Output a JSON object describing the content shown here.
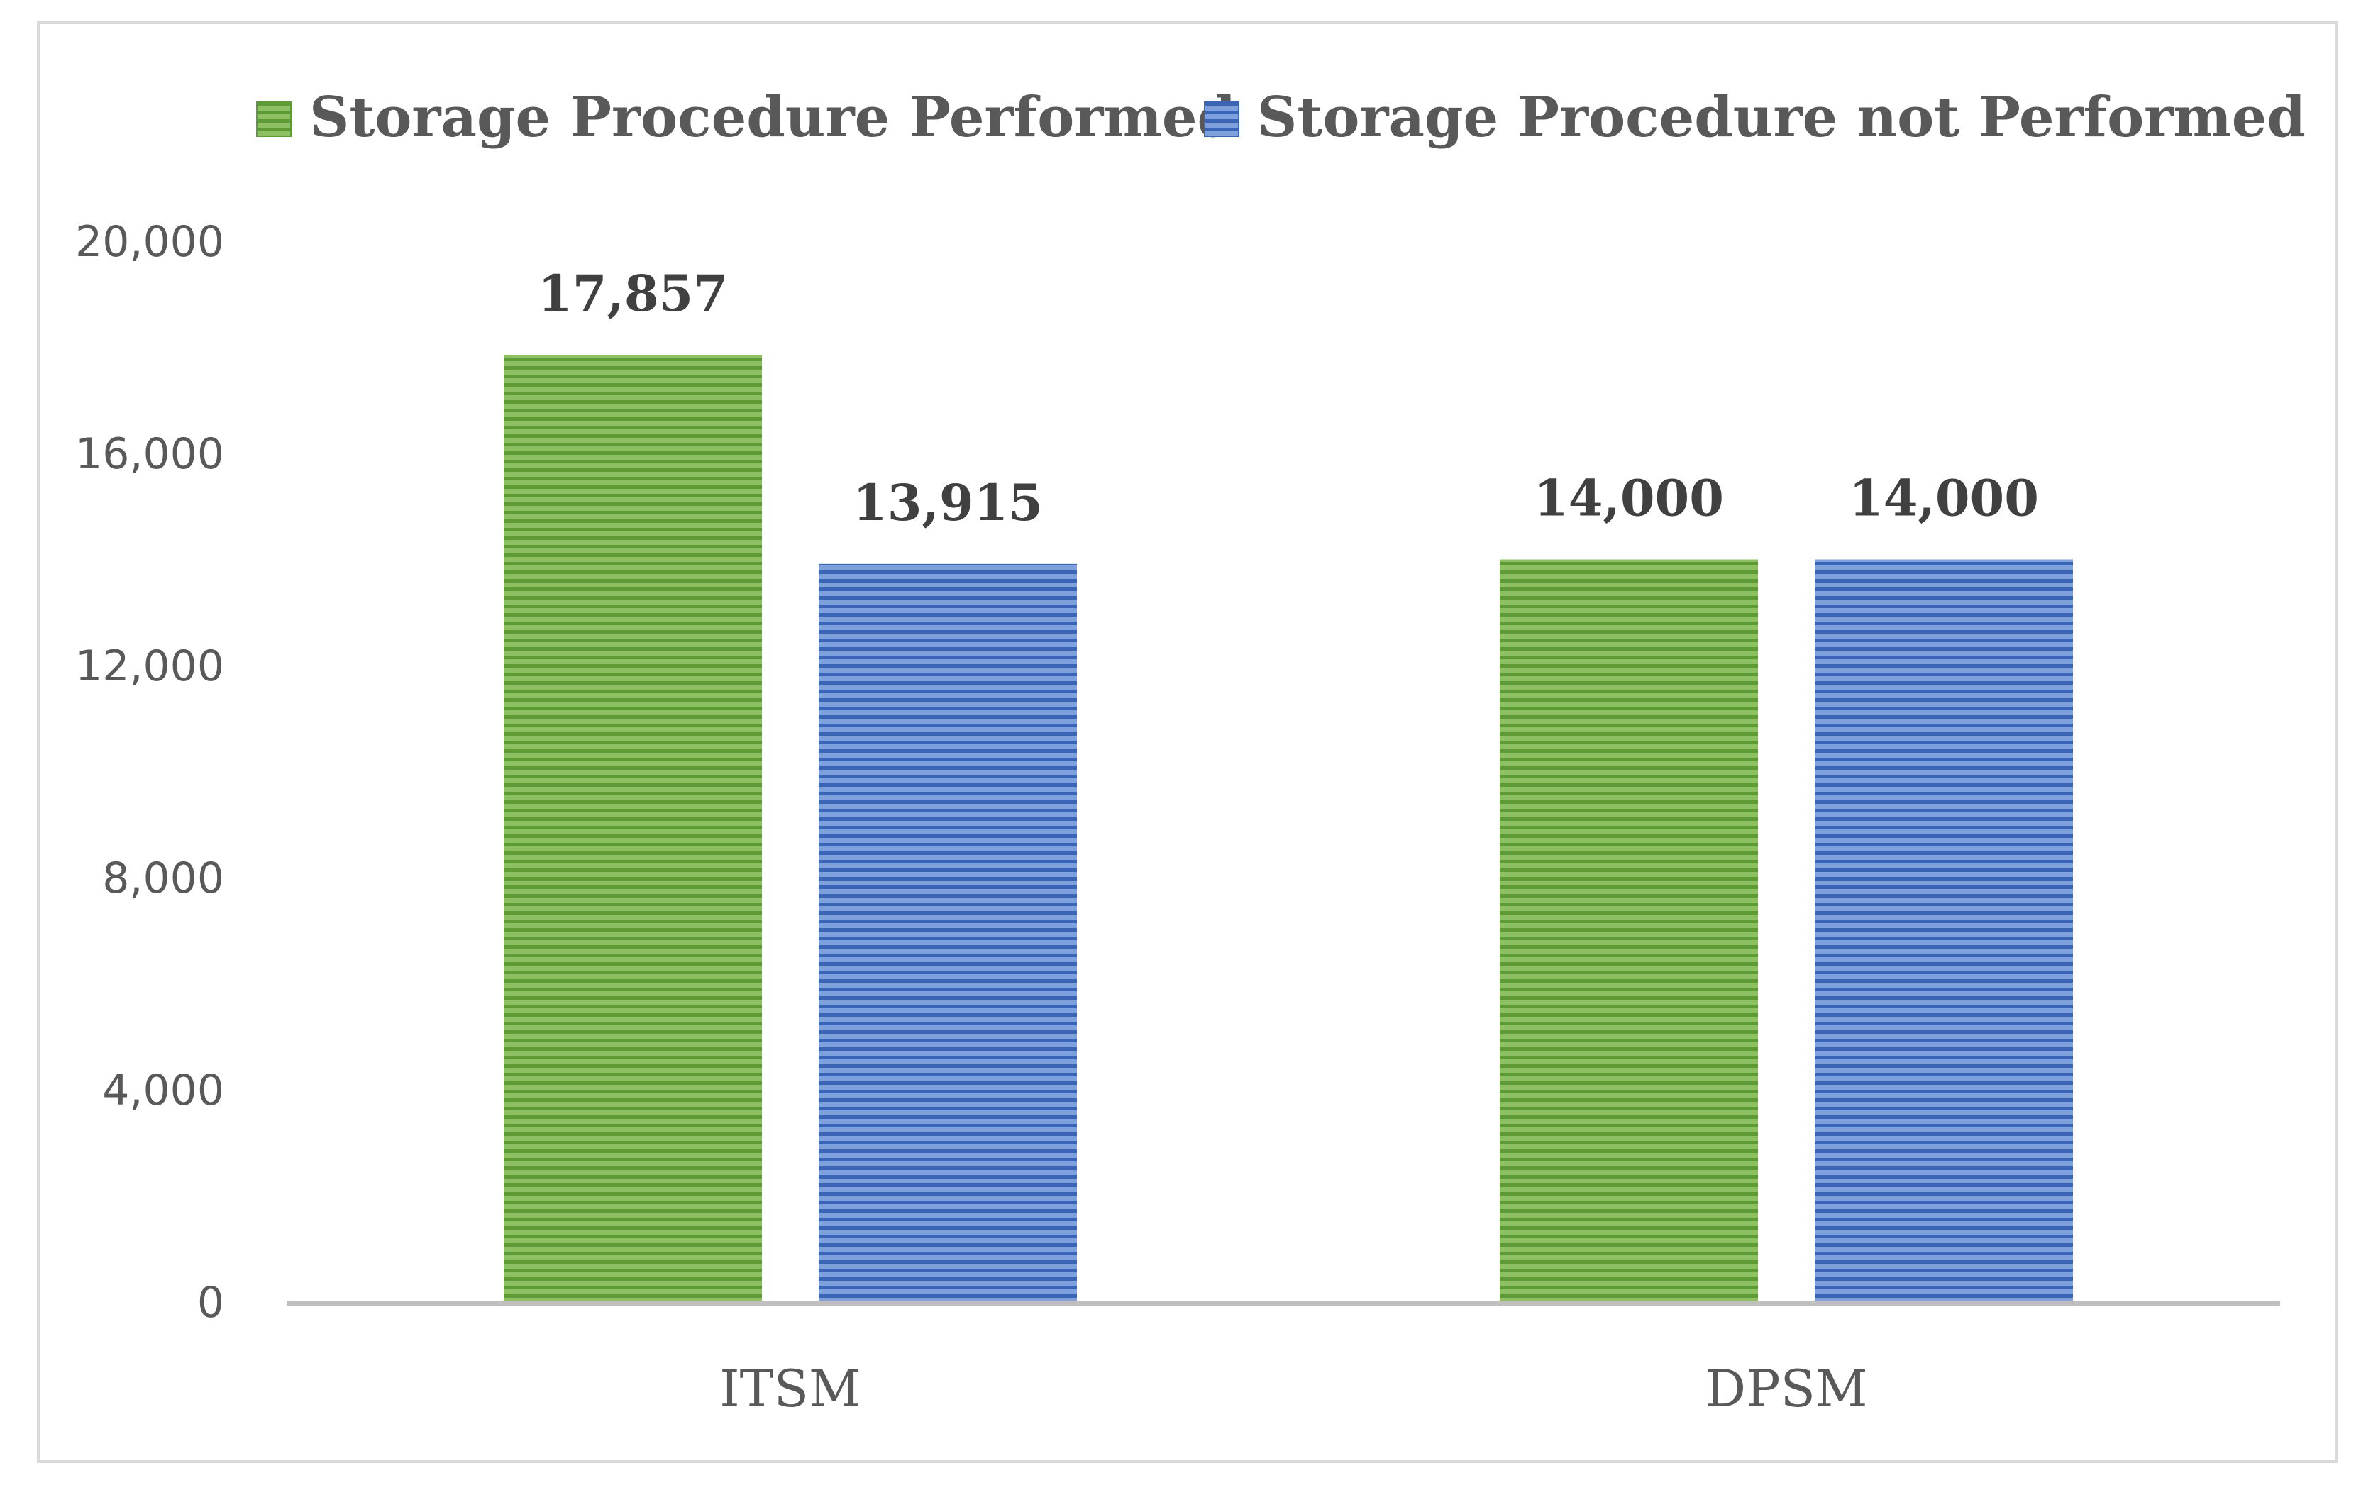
{
  "chart_data": {
    "type": "bar",
    "title": "",
    "xlabel": "",
    "ylabel": "",
    "categories": [
      "ITSM",
      "DPSM"
    ],
    "series": [
      {
        "name": "Storage Procedure Performed",
        "values": [
          17857,
          14000
        ],
        "labels": [
          "17,857",
          "14,000"
        ],
        "color": "#70ad47"
      },
      {
        "name": "Storage Procedure not Performed",
        "values": [
          13915,
          14000
        ],
        "labels": [
          "13,915",
          "14,000"
        ],
        "color": "#4472c4"
      }
    ],
    "yticks": [
      0,
      4000,
      8000,
      12000,
      16000,
      20000
    ],
    "ytick_labels": [
      "0",
      "4,000",
      "8,000",
      "12,000",
      "16,000",
      "20,000"
    ],
    "ylim": [
      0,
      20000
    ],
    "grid": false,
    "legend_position": "top"
  }
}
